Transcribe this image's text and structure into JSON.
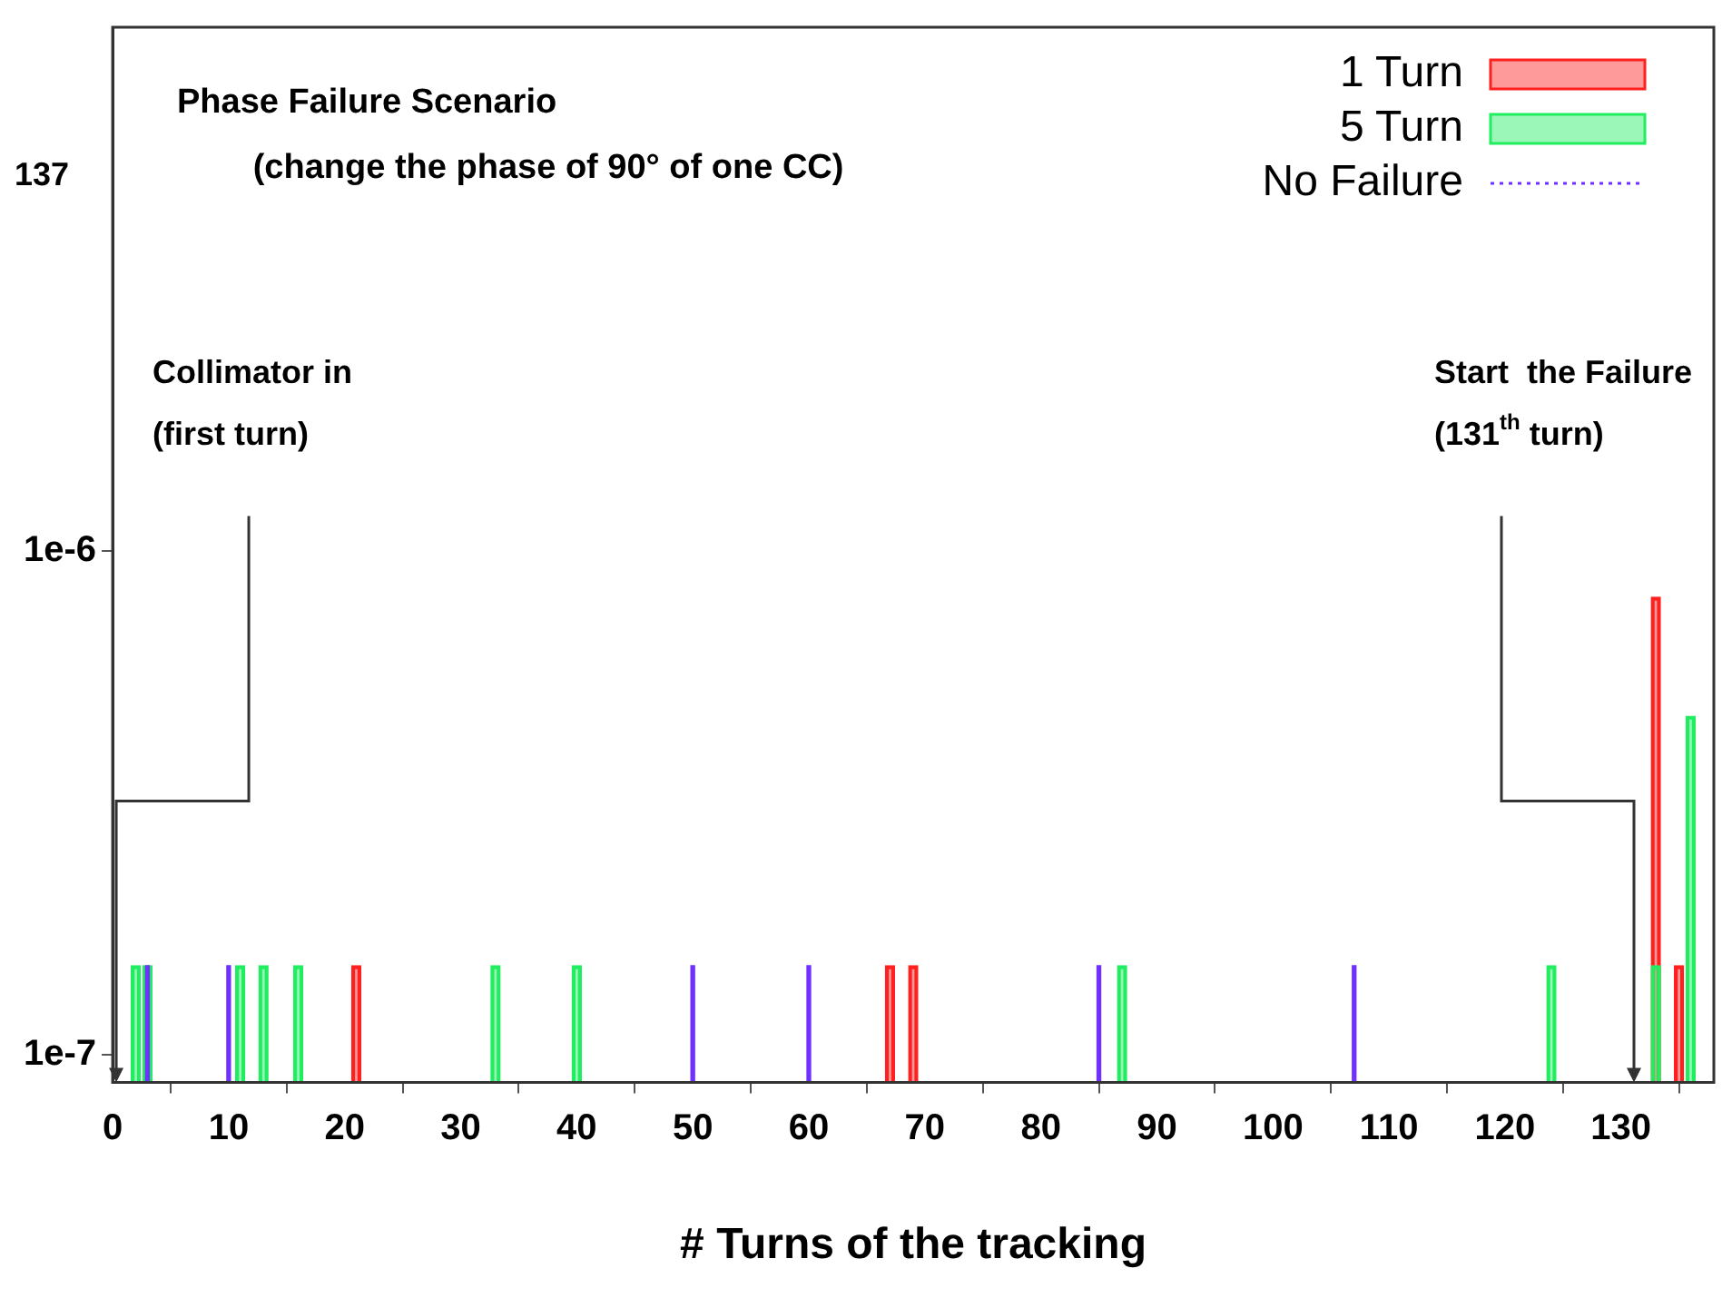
{
  "chart_data": {
    "type": "bar",
    "title": "Phase Failure Scenario",
    "subtitle": "(change the phase of 90° of one CC)",
    "xlabel": "# Turns of the tracking",
    "log": "y",
    "grid": false,
    "legend": "top right",
    "xlim": [
      0,
      138
    ],
    "xticks": [
      0,
      10,
      20,
      30,
      40,
      50,
      60,
      70,
      80,
      90,
      100,
      110,
      120,
      130
    ],
    "ylim": [
      8.8e-08,
      1.1e-05
    ],
    "yticks": [
      {
        "value": 1e-07,
        "label": "1e-7"
      },
      {
        "value": 1e-06,
        "label": "1e-6"
      }
    ],
    "series": [
      {
        "name": "1 Turn",
        "color": "#ff2020",
        "x": [
          21,
          67,
          69,
          133,
          135
        ],
        "values": [
          1.5e-07,
          1.5e-07,
          1.5e-07,
          8.1e-07,
          1.5e-07
        ]
      },
      {
        "name": "5 Turn",
        "color": "#20ee60",
        "x": [
          2,
          3,
          11,
          13,
          16,
          33,
          40,
          87,
          124,
          133,
          136
        ],
        "values": [
          1.5e-07,
          1.5e-07,
          1.5e-07,
          1.5e-07,
          1.5e-07,
          1.5e-07,
          1.5e-07,
          1.5e-07,
          1.5e-07,
          1.5e-07,
          4.7e-07
        ]
      },
      {
        "name": "No Failure",
        "color": "#7030ff",
        "line_style": "dotted",
        "x": [
          3,
          10,
          50,
          60,
          85,
          107
        ],
        "values": [
          1.5e-07,
          1.5e-07,
          1.5e-07,
          1.5e-07,
          1.5e-07,
          1.5e-07
        ]
      }
    ],
    "annotations": [
      "Collimator in\n(first turn)",
      "Start  the Failure\n(131$^{th}$ turn)",
      "137"
    ]
  }
}
